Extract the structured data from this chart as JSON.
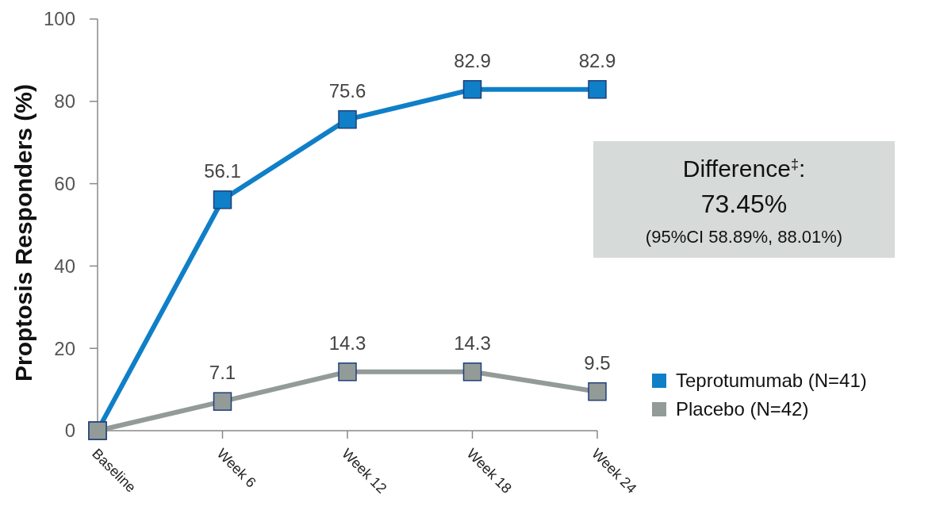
{
  "chart_data": {
    "type": "line",
    "ylabel": "Proptosis Responders (%)",
    "categories": [
      "Baseline",
      "Week 6",
      "Week 12",
      "Week 18",
      "Week 24"
    ],
    "series": [
      {
        "name": "Teprotumumab (N=41)",
        "color": "#0f7fc8",
        "values": [
          0,
          56.1,
          75.6,
          82.9,
          82.9
        ],
        "value_labels": [
          null,
          "56.1",
          "75.6",
          "82.9",
          "82.9"
        ]
      },
      {
        "name": "Placebo (N=42)",
        "color": "#939b98",
        "values": [
          0,
          7.1,
          14.3,
          14.3,
          9.5
        ],
        "value_labels": [
          null,
          "7.1",
          "14.3",
          "14.3",
          "9.5"
        ]
      }
    ],
    "ylim": [
      0,
      100
    ],
    "yticks": [
      0,
      20,
      40,
      60,
      80,
      100
    ],
    "grid": false,
    "legend": "bottom right",
    "marker": "square",
    "line_style": "solid",
    "annotations": [
      "Difference$^{‡}$:",
      "73.45%",
      "(95%CI 58.89%, 88.01%)"
    ]
  }
}
